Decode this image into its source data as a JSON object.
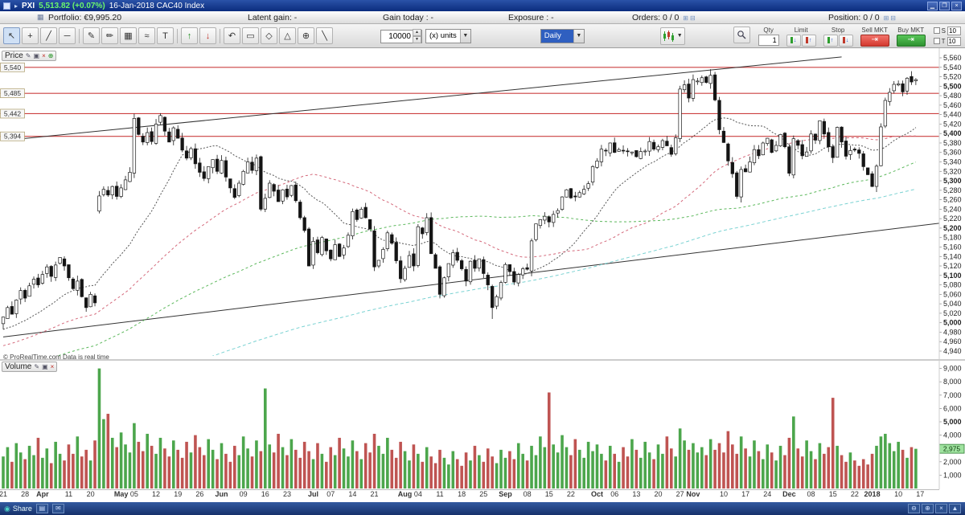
{
  "titlebar": {
    "symbol": "PXI",
    "price": "5,513.82 (+0.07%)",
    "date_title": "16-Jan-2018 CAC40 Index"
  },
  "infobar": {
    "portfolio": "Portfolio: €9,995.20",
    "latent_gain": "Latent gain: -",
    "gain_today": "Gain today : -",
    "exposure": "Exposure : -",
    "orders_label": "Orders:",
    "orders_value": "0 / 0",
    "position_label": "Position:",
    "position_value": "0 / 0"
  },
  "toolbar": {
    "quantity": "10000",
    "units": "(x) units",
    "timeframe": "Daily",
    "qty_label": "Qty",
    "qty_value": "1",
    "limit_label": "Limit",
    "stop_label": "Stop",
    "sell_label": "Sell MKT",
    "buy_label": "Buy MKT",
    "s_label": "S",
    "s_value": "10",
    "t_label": "T",
    "t_value": "10"
  },
  "panes": {
    "price_label": "Price",
    "volume_label": "Volume",
    "copyright": "© ProRealTime.com Data is real time"
  },
  "taskbar": {
    "share": "Share"
  },
  "chart_data": {
    "type": "candlestick+volume",
    "title": "CAC40 Index - Daily",
    "y_axis": {
      "min": 4940,
      "max": 5560,
      "step": 20
    },
    "volume_axis": {
      "min": 1000,
      "max": 9000,
      "step": 1000
    },
    "levels": [
      5540,
      5485,
      5442,
      5394
    ],
    "trendlines": [
      {
        "from": [
          0,
          4970
        ],
        "to": [
          215,
          5211
        ]
      },
      {
        "from": [
          0,
          5385
        ],
        "to": [
          192,
          5562
        ]
      }
    ],
    "ma": {
      "periods": [
        20,
        50,
        100,
        200
      ],
      "prepad_from": 4550,
      "prepad_to": 5005,
      "prepad_n": 200
    },
    "x_ticks": [
      [
        "21",
        0,
        0
      ],
      [
        "28",
        5,
        0
      ],
      [
        "Apr",
        9,
        1
      ],
      [
        "11",
        15,
        0
      ],
      [
        "20",
        20,
        0
      ],
      [
        "May",
        27,
        1
      ],
      [
        "05",
        30,
        0
      ],
      [
        "12",
        35,
        0
      ],
      [
        "19",
        40,
        0
      ],
      [
        "26",
        45,
        0
      ],
      [
        "Jun",
        50,
        1
      ],
      [
        "09",
        55,
        0
      ],
      [
        "16",
        60,
        0
      ],
      [
        "23",
        65,
        0
      ],
      [
        "Jul",
        71,
        1
      ],
      [
        "07",
        75,
        0
      ],
      [
        "14",
        80,
        0
      ],
      [
        "21",
        85,
        0
      ],
      [
        "Aug",
        92,
        1
      ],
      [
        "04",
        95,
        0
      ],
      [
        "11",
        100,
        0
      ],
      [
        "18",
        105,
        0
      ],
      [
        "25",
        110,
        0
      ],
      [
        "Sep",
        115,
        1
      ],
      [
        "08",
        120,
        0
      ],
      [
        "15",
        125,
        0
      ],
      [
        "22",
        130,
        0
      ],
      [
        "Oct",
        136,
        1
      ],
      [
        "06",
        140,
        0
      ],
      [
        "13",
        145,
        0
      ],
      [
        "20",
        150,
        0
      ],
      [
        "27",
        155,
        0
      ],
      [
        "Nov",
        158,
        1
      ],
      [
        "10",
        165,
        0
      ],
      [
        "17",
        170,
        0
      ],
      [
        "24",
        175,
        0
      ],
      [
        "Dec",
        180,
        1
      ],
      [
        "08",
        185,
        0
      ],
      [
        "15",
        190,
        0
      ],
      [
        "22",
        195,
        0
      ],
      [
        "2018",
        199,
        1
      ],
      [
        "10",
        205,
        0
      ],
      [
        "17",
        210,
        0
      ]
    ],
    "closes": [
      5012,
      5032,
      5018,
      5048,
      5068,
      5052,
      5078,
      5092,
      5080,
      5102,
      5118,
      5098,
      5122,
      5138,
      5120,
      5095,
      5072,
      5088,
      5055,
      5032,
      5060,
      5042,
      5268,
      5282,
      5270,
      5288,
      5267,
      5285,
      5302,
      5318,
      5432,
      5398,
      5382,
      5402,
      5383,
      5420,
      5438,
      5405,
      5382,
      5412,
      5390,
      5365,
      5348,
      5368,
      5336,
      5318,
      5305,
      5330,
      5345,
      5320,
      5343,
      5308,
      5285,
      5265,
      5295,
      5320,
      5340,
      5322,
      5348,
      5240,
      5263,
      5295,
      5278,
      5256,
      5281,
      5266,
      5290,
      5258,
      5222,
      5195,
      5120,
      5172,
      5148,
      5180,
      5152,
      5135,
      5165,
      5140,
      5158,
      5185,
      5235,
      5218,
      5240,
      5222,
      5198,
      5118,
      5132,
      5155,
      5190,
      5168,
      5131,
      5093,
      5115,
      5142,
      5120,
      5203,
      5188,
      5222,
      5146,
      5115,
      5060,
      5095,
      5125,
      5148,
      5132,
      5114,
      5088,
      5130,
      5115,
      5135,
      5104,
      5080,
      5032,
      5055,
      5085,
      5123,
      5108,
      5086,
      5102,
      5114,
      5113,
      5173,
      5209,
      5218,
      5225,
      5213,
      5229,
      5237,
      5266,
      5281,
      5264,
      5266,
      5275,
      5282,
      5294,
      5330,
      5342,
      5367,
      5363,
      5380,
      5360,
      5366,
      5363,
      5362,
      5361,
      5351,
      5362,
      5363,
      5383,
      5367,
      5372,
      5385,
      5374,
      5356,
      5391,
      5494,
      5503,
      5475,
      5514,
      5511,
      5518,
      5508,
      5523,
      5471,
      5408,
      5381,
      5342,
      5315,
      5267,
      5324,
      5319,
      5340,
      5366,
      5353,
      5380,
      5390,
      5360,
      5375,
      5398,
      5372,
      5316,
      5389,
      5375,
      5353,
      5361,
      5399,
      5386,
      5427,
      5399,
      5372,
      5349,
      5413,
      5382,
      5352,
      5364,
      5365,
      5358,
      5330,
      5313,
      5288,
      5331,
      5414,
      5470,
      5487,
      5504,
      5505,
      5488,
      5517,
      5509,
      5514
    ],
    "volumes": [
      2400,
      3100,
      2000,
      3400,
      2700,
      2200,
      3200,
      2500,
      3800,
      2300,
      3000,
      1900,
      3500,
      2600,
      2100,
      3300,
      2600,
      3900,
      2400,
      2900,
      2100,
      3600,
      9000,
      5200,
      5600,
      3800,
      3100,
      4200,
      3300,
      2700,
      4900,
      3500,
      2800,
      4100,
      3200,
      2600,
      3800,
      3000,
      2400,
      3600,
      2900,
      2300,
      3500,
      2700,
      4000,
      3100,
      2500,
      3700,
      2900,
      2200,
      3400,
      2600,
      2000,
      3200,
      2500,
      3900,
      3000,
      2400,
      3600,
      2800,
      7500,
      3300,
      2700,
      4100,
      3100,
      2500,
      3700,
      2900,
      2300,
      3500,
      2800,
      2200,
      3400,
      2600,
      2000,
      3100,
      2500,
      3800,
      3000,
      2400,
      3600,
      2800,
      2200,
      3400,
      2700,
      4100,
      3200,
      2600,
      3800,
      2900,
      2300,
      3500,
      2800,
      2100,
      3300,
      2600,
      2000,
      3100,
      2400,
      1900,
      2900,
      2300,
      1800,
      2800,
      2200,
      1700,
      2700,
      2100,
      3200,
      2500,
      2000,
      3000,
      2400,
      1900,
      2900,
      2300,
      2800,
      2200,
      3400,
      2600,
      2100,
      3200,
      2500,
      3900,
      3100,
      7200,
      3300,
      2700,
      4000,
      3100,
      2500,
      3700,
      2900,
      2300,
      3500,
      2800,
      3300,
      2600,
      2100,
      3200,
      2600,
      2000,
      3100,
      2400,
      3700,
      2900,
      2300,
      3500,
      2700,
      2200,
      3300,
      2600,
      3900,
      3000,
      2400,
      4500,
      3600,
      2900,
      3400,
      2700,
      3100,
      2500,
      3700,
      2900,
      3400,
      2700,
      4300,
      3300,
      2600,
      3900,
      3000,
      2400,
      3600,
      2800,
      2200,
      3300,
      2700,
      2100,
      3200,
      2500,
      3800,
      5400,
      3000,
      2400,
      3600,
      2800,
      2200,
      3400,
      2600,
      3100,
      6800,
      3200,
      2500,
      2000,
      2700,
      2100,
      1700,
      2200,
      1800,
      2600,
      3200,
      3900,
      4100,
      3400,
      2800,
      3500,
      2900,
      2300,
      3100,
      2975
    ],
    "overrides": [
      {
        "i": 22,
        "open": 5236
      },
      {
        "i": 30,
        "high": 5442
      },
      {
        "i": 36,
        "high": 5443
      },
      {
        "i": 112,
        "low": 5008
      },
      {
        "i": 162,
        "high": 5536
      }
    ],
    "last_price": 5513.82,
    "last_volume": 2975,
    "colors": {
      "up_candle": "#ffffff",
      "down_candle": "#141414",
      "candle_stroke": "#1a1a1a",
      "volume_up": "#4ca64c",
      "volume_down": "#bf5452",
      "level_line": "#cc4040",
      "trendline": "#333333",
      "ma": [
        "#555555",
        "#d4687a",
        "#5cb85c",
        "#7ad2d2"
      ],
      "volume_marker_bg": "#9fe29f",
      "volume_marker_border": "#2e7d32"
    }
  }
}
